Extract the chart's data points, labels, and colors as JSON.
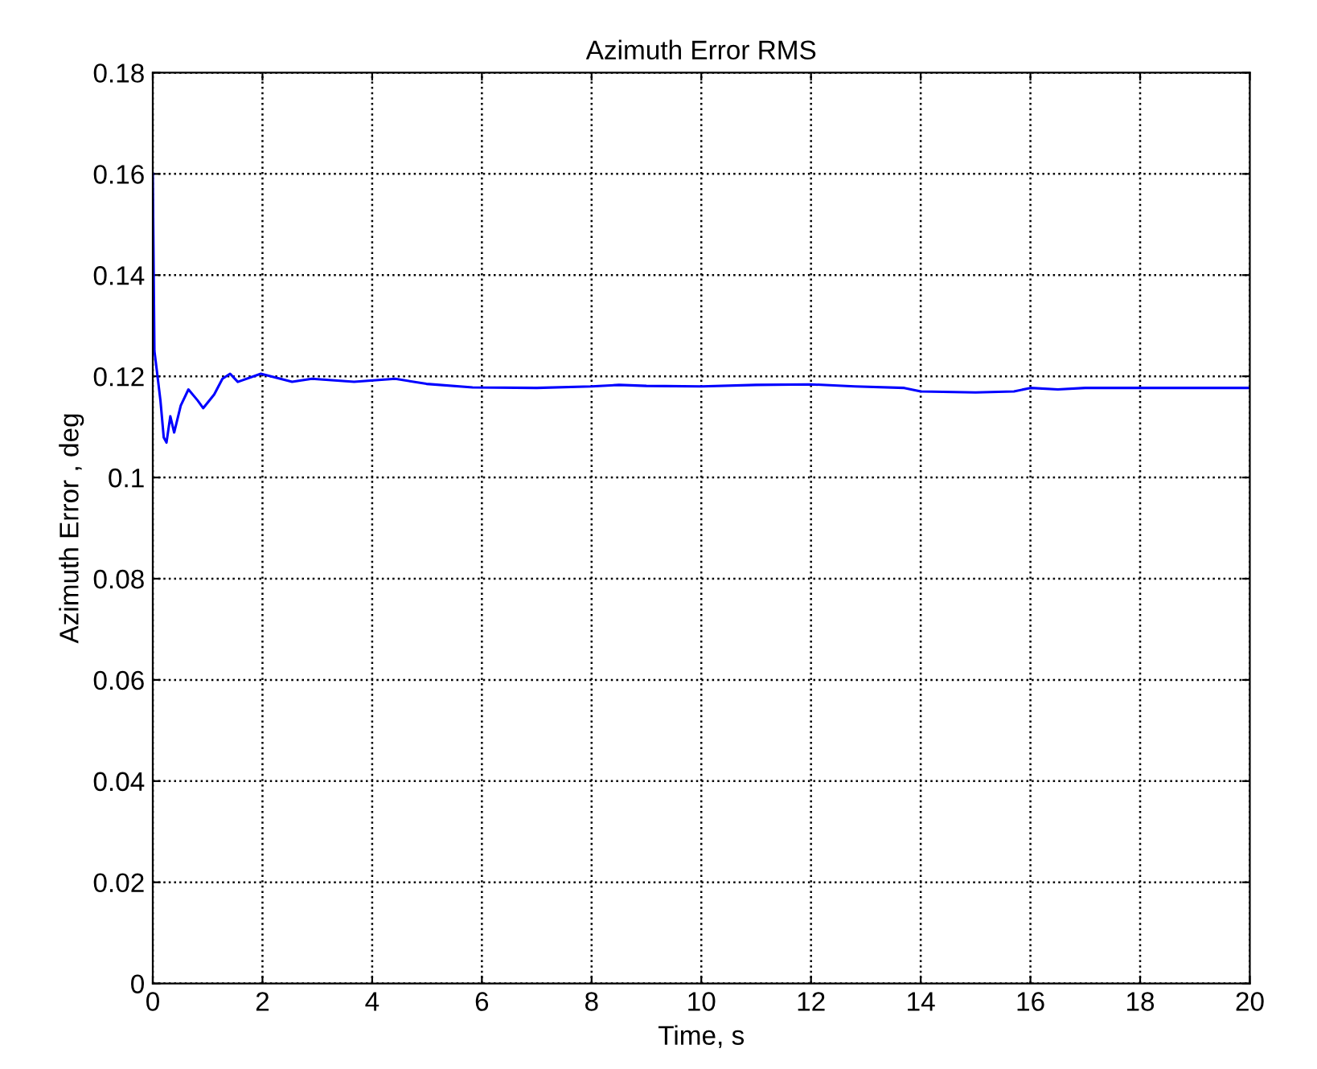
{
  "chart_data": {
    "type": "line",
    "title": "Azimuth Error RMS",
    "xlabel": "Time, s",
    "ylabel": "Azimuth Error , deg",
    "xlim": [
      0,
      20
    ],
    "xticks": [
      0,
      2,
      4,
      6,
      8,
      10,
      12,
      14,
      16,
      18,
      20
    ],
    "ylim": [
      0,
      0.18
    ],
    "yticks": [
      0,
      0.02,
      0.04,
      0.06,
      0.08,
      0.1,
      0.12,
      0.14,
      0.16,
      0.18
    ],
    "grid": true,
    "line_style": "solid",
    "marker": "none",
    "series": [
      {
        "color": "#0000ff",
        "x": [
          0,
          0.03,
          0.07,
          0.14,
          0.2,
          0.25,
          0.32,
          0.39,
          0.51,
          0.65,
          0.82,
          0.92,
          1.12,
          1.27,
          1.41,
          1.55,
          1.97,
          2.54,
          2.9,
          3.67,
          4.42,
          4.99,
          5.83,
          7,
          8,
          8.5,
          9,
          10,
          11,
          12,
          12.8,
          13.7,
          14,
          15,
          15.7,
          16,
          16.5,
          17,
          20
        ],
        "values": [
          0.16,
          0.125,
          0.1215,
          0.1152,
          0.1079,
          0.1069,
          0.1121,
          0.1089,
          0.1142,
          0.1174,
          0.1152,
          0.1137,
          0.1164,
          0.1195,
          0.1205,
          0.1189,
          0.1205,
          0.1189,
          0.1195,
          0.1189,
          0.1195,
          0.1185,
          0.1178,
          0.1177,
          0.118,
          0.1183,
          0.1181,
          0.118,
          0.1183,
          0.1184,
          0.118,
          0.1177,
          0.117,
          0.1168,
          0.117,
          0.1177,
          0.1174,
          0.1177,
          0.1177
        ]
      }
    ]
  }
}
